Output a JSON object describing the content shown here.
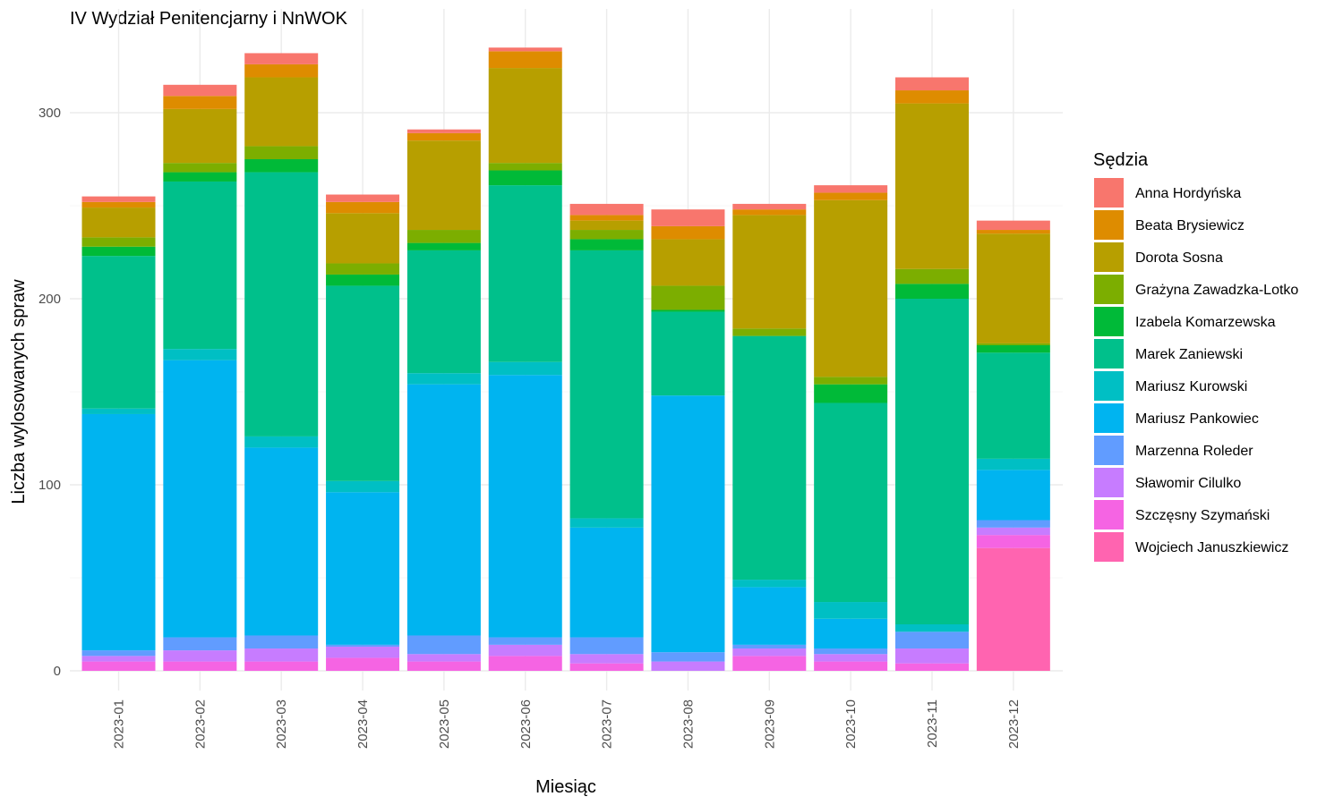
{
  "chart_data": {
    "type": "bar",
    "stacked": true,
    "title": "IV Wydział Penitencjarny i NnWOK",
    "xlabel": "Miesiąc",
    "ylabel": "Liczba wylosowanych spraw",
    "ylim": [
      0,
      340
    ],
    "yticks": [
      0,
      100,
      200,
      300
    ],
    "grid": true,
    "legend_title": "Sędzia",
    "legend_position": "right",
    "categories": [
      "2023-01",
      "2023-02",
      "2023-03",
      "2023-04",
      "2023-05",
      "2023-06",
      "2023-07",
      "2023-08",
      "2023-09",
      "2023-10",
      "2023-11",
      "2023-12"
    ],
    "series": [
      {
        "name": "Anna Hordyńska",
        "color": "#F8766D",
        "values": [
          3,
          6,
          6,
          4,
          2,
          2,
          6,
          9,
          3,
          4,
          7,
          5
        ]
      },
      {
        "name": "Beata Brysiewicz",
        "color": "#DE8C00",
        "values": [
          3,
          7,
          7,
          6,
          4,
          9,
          3,
          7,
          3,
          4,
          7,
          2
        ]
      },
      {
        "name": "Dorota Sosna",
        "color": "#B79F00",
        "values": [
          16,
          29,
          37,
          27,
          48,
          51,
          5,
          25,
          61,
          95,
          89,
          59
        ]
      },
      {
        "name": "Grażyna Zawadzka-Lotko",
        "color": "#7CAE00",
        "values": [
          5,
          5,
          7,
          6,
          7,
          4,
          5,
          13,
          4,
          4,
          8,
          1
        ]
      },
      {
        "name": "Izabela Komarzewska",
        "color": "#00BA38",
        "values": [
          5,
          5,
          7,
          6,
          4,
          8,
          6,
          1,
          0,
          10,
          8,
          4
        ]
      },
      {
        "name": "Marek Zaniewski",
        "color": "#00C08B",
        "values": [
          82,
          90,
          142,
          105,
          66,
          95,
          144,
          45,
          131,
          107,
          175,
          57
        ]
      },
      {
        "name": "Mariusz Kurowski",
        "color": "#00BFC4",
        "values": [
          3,
          6,
          6,
          6,
          6,
          7,
          5,
          0,
          4,
          9,
          4,
          6
        ]
      },
      {
        "name": "Mariusz Pankowiec",
        "color": "#00B4F0",
        "values": [
          127,
          149,
          101,
          82,
          135,
          141,
          59,
          138,
          31,
          16,
          0,
          27
        ]
      },
      {
        "name": "Marzenna Roleder",
        "color": "#619CFF",
        "values": [
          3,
          7,
          7,
          1,
          10,
          4,
          9,
          5,
          2,
          3,
          9,
          4
        ]
      },
      {
        "name": "Sławomir Cilulko",
        "color": "#C77CFF",
        "values": [
          3,
          6,
          7,
          6,
          4,
          6,
          5,
          5,
          4,
          4,
          8,
          4
        ]
      },
      {
        "name": "Szczęsny Szymański",
        "color": "#F564E3",
        "values": [
          5,
          5,
          5,
          7,
          5,
          8,
          4,
          0,
          8,
          5,
          4,
          7
        ]
      },
      {
        "name": "Wojciech Januszkiewicz",
        "color": "#FF64B0",
        "values": [
          0,
          0,
          0,
          0,
          0,
          0,
          0,
          0,
          0,
          0,
          0,
          66
        ]
      }
    ]
  }
}
